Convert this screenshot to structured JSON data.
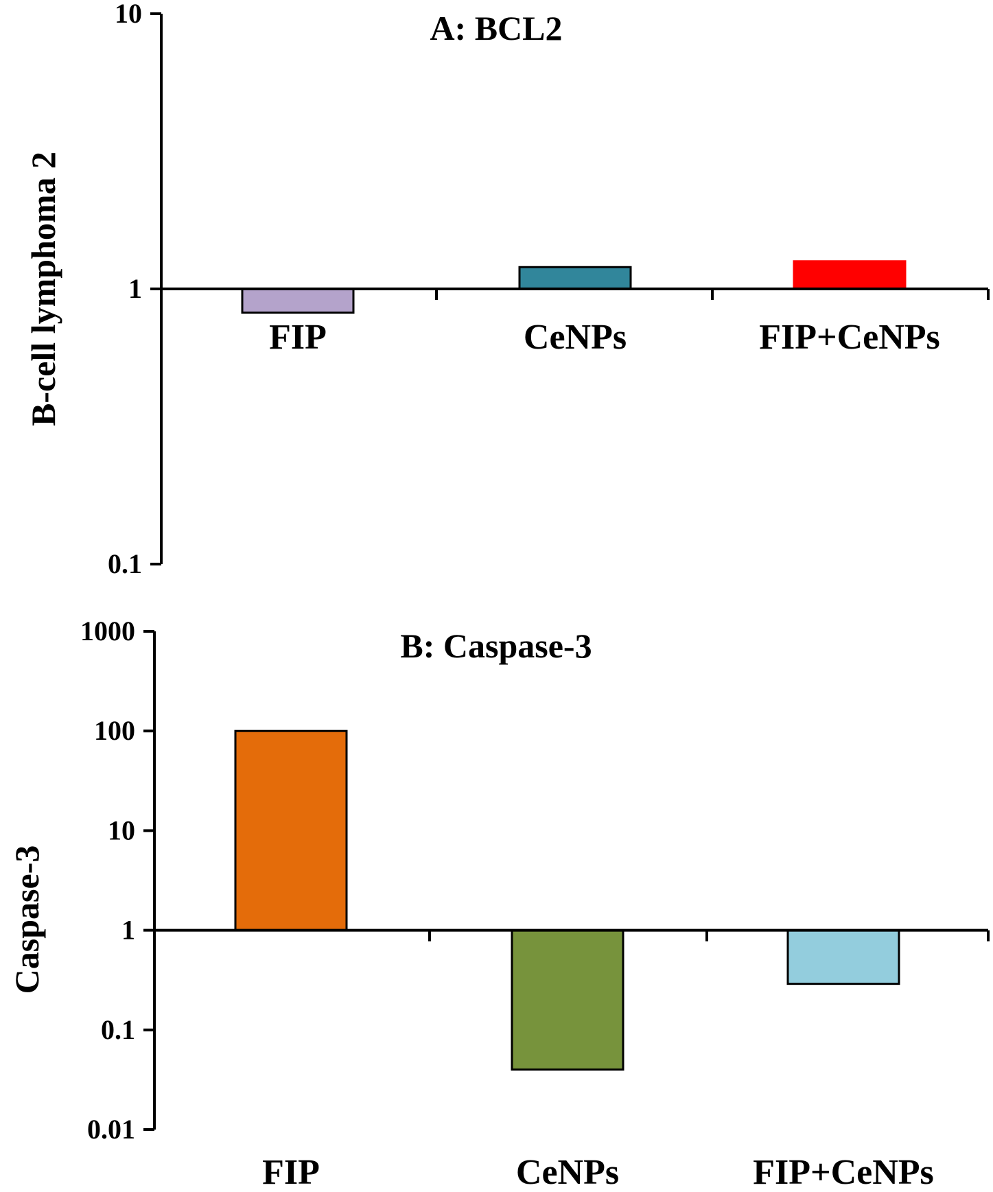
{
  "chart_data": [
    {
      "type": "bar",
      "title": "A: BCL2",
      "xlabel": "",
      "ylabel": "B-cell lymphoma 2",
      "yscale": "log",
      "ylim": [
        0.1,
        10
      ],
      "baseline": 1,
      "yticks": [
        0.1,
        1,
        10
      ],
      "ytick_labels": [
        "0.1",
        "1",
        "10"
      ],
      "categories": [
        "FIP",
        "CeNPs",
        "FIP+CeNPs"
      ],
      "values": [
        0.82,
        1.2,
        1.26
      ],
      "colors": [
        "#B4A3CB",
        "#31869B",
        "#FF0000"
      ],
      "bar_outline": [
        "#000000",
        "#000000",
        "#FF0000"
      ],
      "grid": false,
      "legend": "none"
    },
    {
      "type": "bar",
      "title": "B: Caspase-3",
      "xlabel": "",
      "ylabel": "Caspase-3",
      "yscale": "log",
      "ylim": [
        0.01,
        1000
      ],
      "baseline": 1,
      "yticks": [
        0.01,
        0.1,
        1,
        10,
        100,
        1000
      ],
      "ytick_labels": [
        "0.01",
        "0.1",
        "1",
        "10",
        "100",
        "1000"
      ],
      "categories": [
        "FIP",
        "CeNPs",
        "FIP+CeNPs"
      ],
      "values": [
        100,
        0.04,
        0.29
      ],
      "colors": [
        "#E46C0A",
        "#77933C",
        "#93CDDD"
      ],
      "bar_outline": [
        "#000000",
        "#000000",
        "#000000"
      ],
      "grid": false,
      "legend": "none"
    }
  ]
}
